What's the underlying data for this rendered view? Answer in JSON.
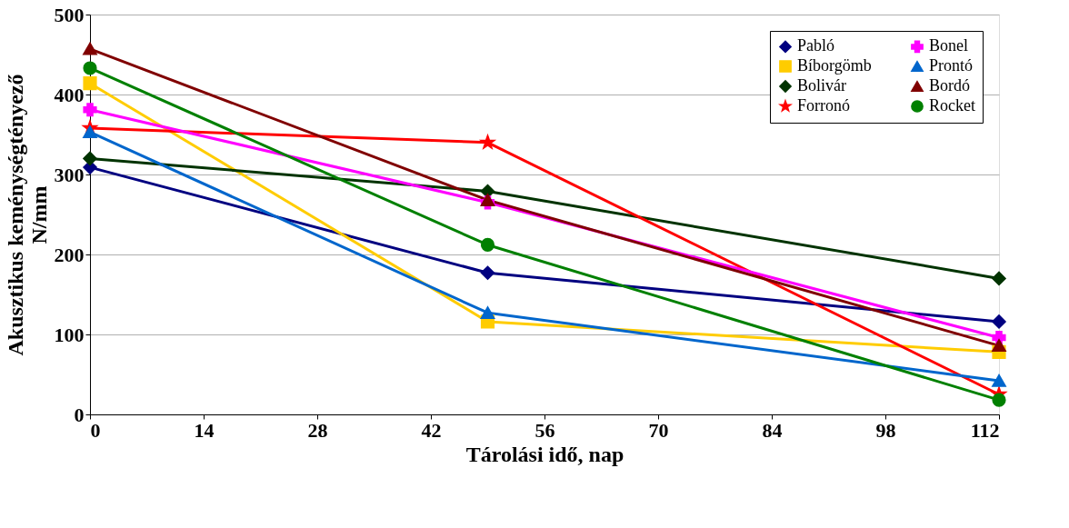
{
  "chart_data": {
    "type": "line",
    "xlabel": "Tárolási idő, nap",
    "ylabel": "Akusztikus keménységtényező\nN/mm",
    "x": [
      0,
      49,
      112
    ],
    "xlim": [
      0,
      112
    ],
    "xticks": [
      0,
      14,
      28,
      42,
      56,
      70,
      84,
      98,
      112
    ],
    "ylim": [
      0,
      500
    ],
    "yticks": [
      0,
      100,
      200,
      300,
      400,
      500
    ],
    "grid": "y",
    "legend": "top right",
    "series": [
      {
        "name": "Pabló",
        "color": "#000080",
        "marker": "diamond",
        "values": [
          309,
          177,
          116
        ]
      },
      {
        "name": "Bíborgömb",
        "color": "#ffcc00",
        "marker": "square",
        "values": [
          414,
          116,
          78
        ]
      },
      {
        "name": "Bolivár",
        "color": "#003300",
        "marker": "diamond",
        "values": [
          320,
          279,
          170
        ]
      },
      {
        "name": "Forronó",
        "color": "#ff0000",
        "marker": "star",
        "values": [
          358,
          340,
          25
        ]
      },
      {
        "name": "Bonel",
        "color": "#ff00ff",
        "marker": "cross",
        "values": [
          381,
          265,
          96
        ]
      },
      {
        "name": "Prontó",
        "color": "#0066cc",
        "marker": "triangle",
        "values": [
          353,
          127,
          42
        ]
      },
      {
        "name": "Bordó",
        "color": "#800000",
        "marker": "triangle",
        "values": [
          457,
          268,
          86
        ]
      },
      {
        "name": "Rocket",
        "color": "#008000",
        "marker": "circle",
        "values": [
          433,
          212,
          18
        ]
      }
    ]
  }
}
